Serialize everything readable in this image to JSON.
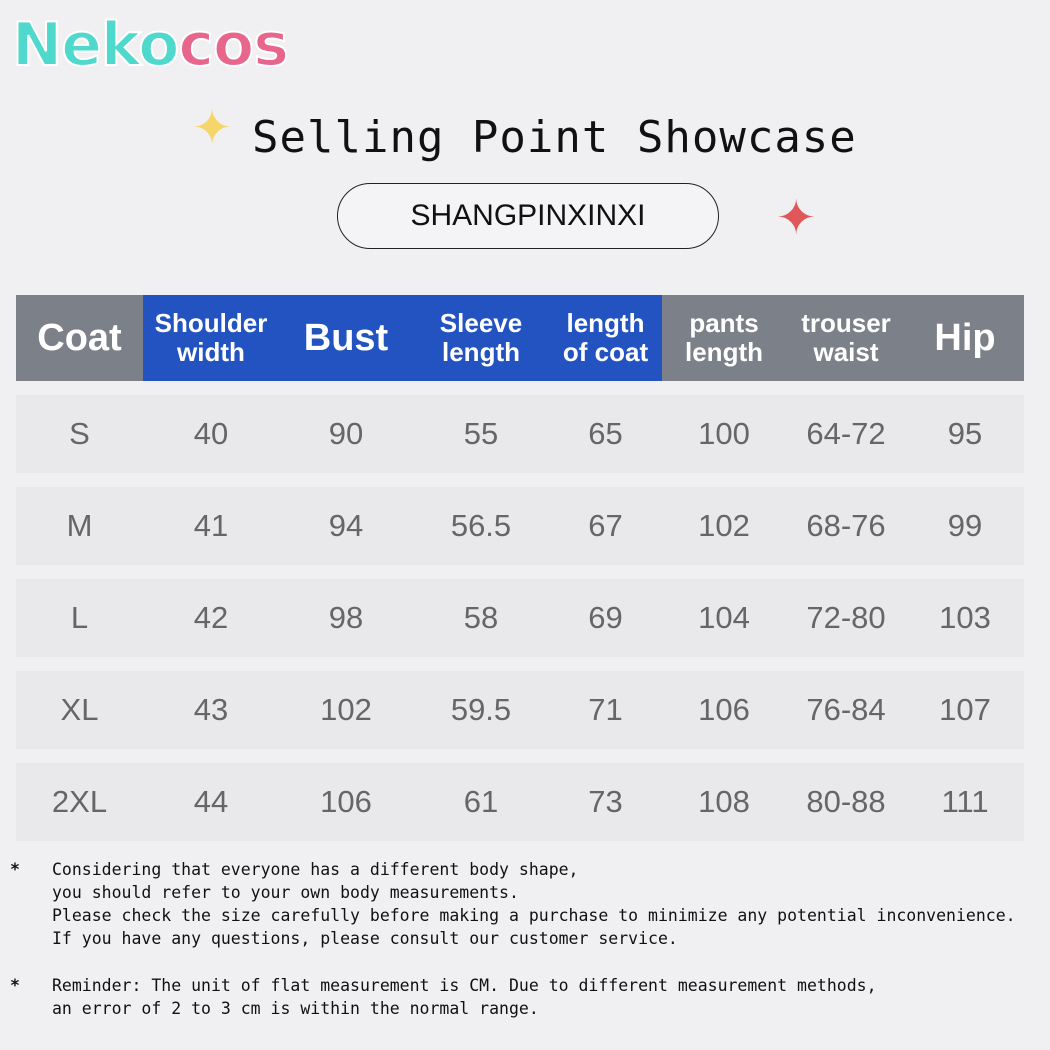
{
  "brand": {
    "logo_part1": "Neko",
    "logo_part2": "cos"
  },
  "title": "Selling Point Showcase",
  "subtitle": "SHANGPINXINXI",
  "colors": {
    "header_gray": "#7c8089",
    "header_blue": "#2353c0",
    "logo_teal": "#4fd8cc",
    "logo_pink": "#e8668c"
  },
  "table": {
    "headers": [
      [
        "Coat"
      ],
      [
        "Shoulder",
        "width"
      ],
      [
        "Bust"
      ],
      [
        "Sleeve",
        "length"
      ],
      [
        "length",
        "of coat"
      ],
      [
        "pants",
        "length"
      ],
      [
        "trouser",
        "waist"
      ],
      [
        "Hip"
      ]
    ],
    "rows": [
      [
        "S",
        "40",
        "90",
        "55",
        "65",
        "100",
        "64-72",
        "95"
      ],
      [
        "M",
        "41",
        "94",
        "56.5",
        "67",
        "102",
        "68-76",
        "99"
      ],
      [
        "L",
        "42",
        "98",
        "58",
        "69",
        "104",
        "72-80",
        "103"
      ],
      [
        "XL",
        "43",
        "102",
        "59.5",
        "71",
        "106",
        "76-84",
        "107"
      ],
      [
        "2XL",
        "44",
        "106",
        "61",
        "73",
        "108",
        "80-88",
        "111"
      ]
    ]
  },
  "notes": [
    {
      "marker": "*",
      "lines": [
        "Considering that everyone has a different body shape,",
        "you should refer to your own body measurements.",
        "Please check the size carefully before making a purchase to minimize any potential inconvenience.",
        "If you have any questions, please consult our customer service."
      ]
    },
    {
      "marker": "*",
      "lines": [
        "Reminder: The unit of flat measurement is CM. Due to different measurement methods,",
        "an error of 2 to 3 cm is within the normal range."
      ]
    }
  ]
}
